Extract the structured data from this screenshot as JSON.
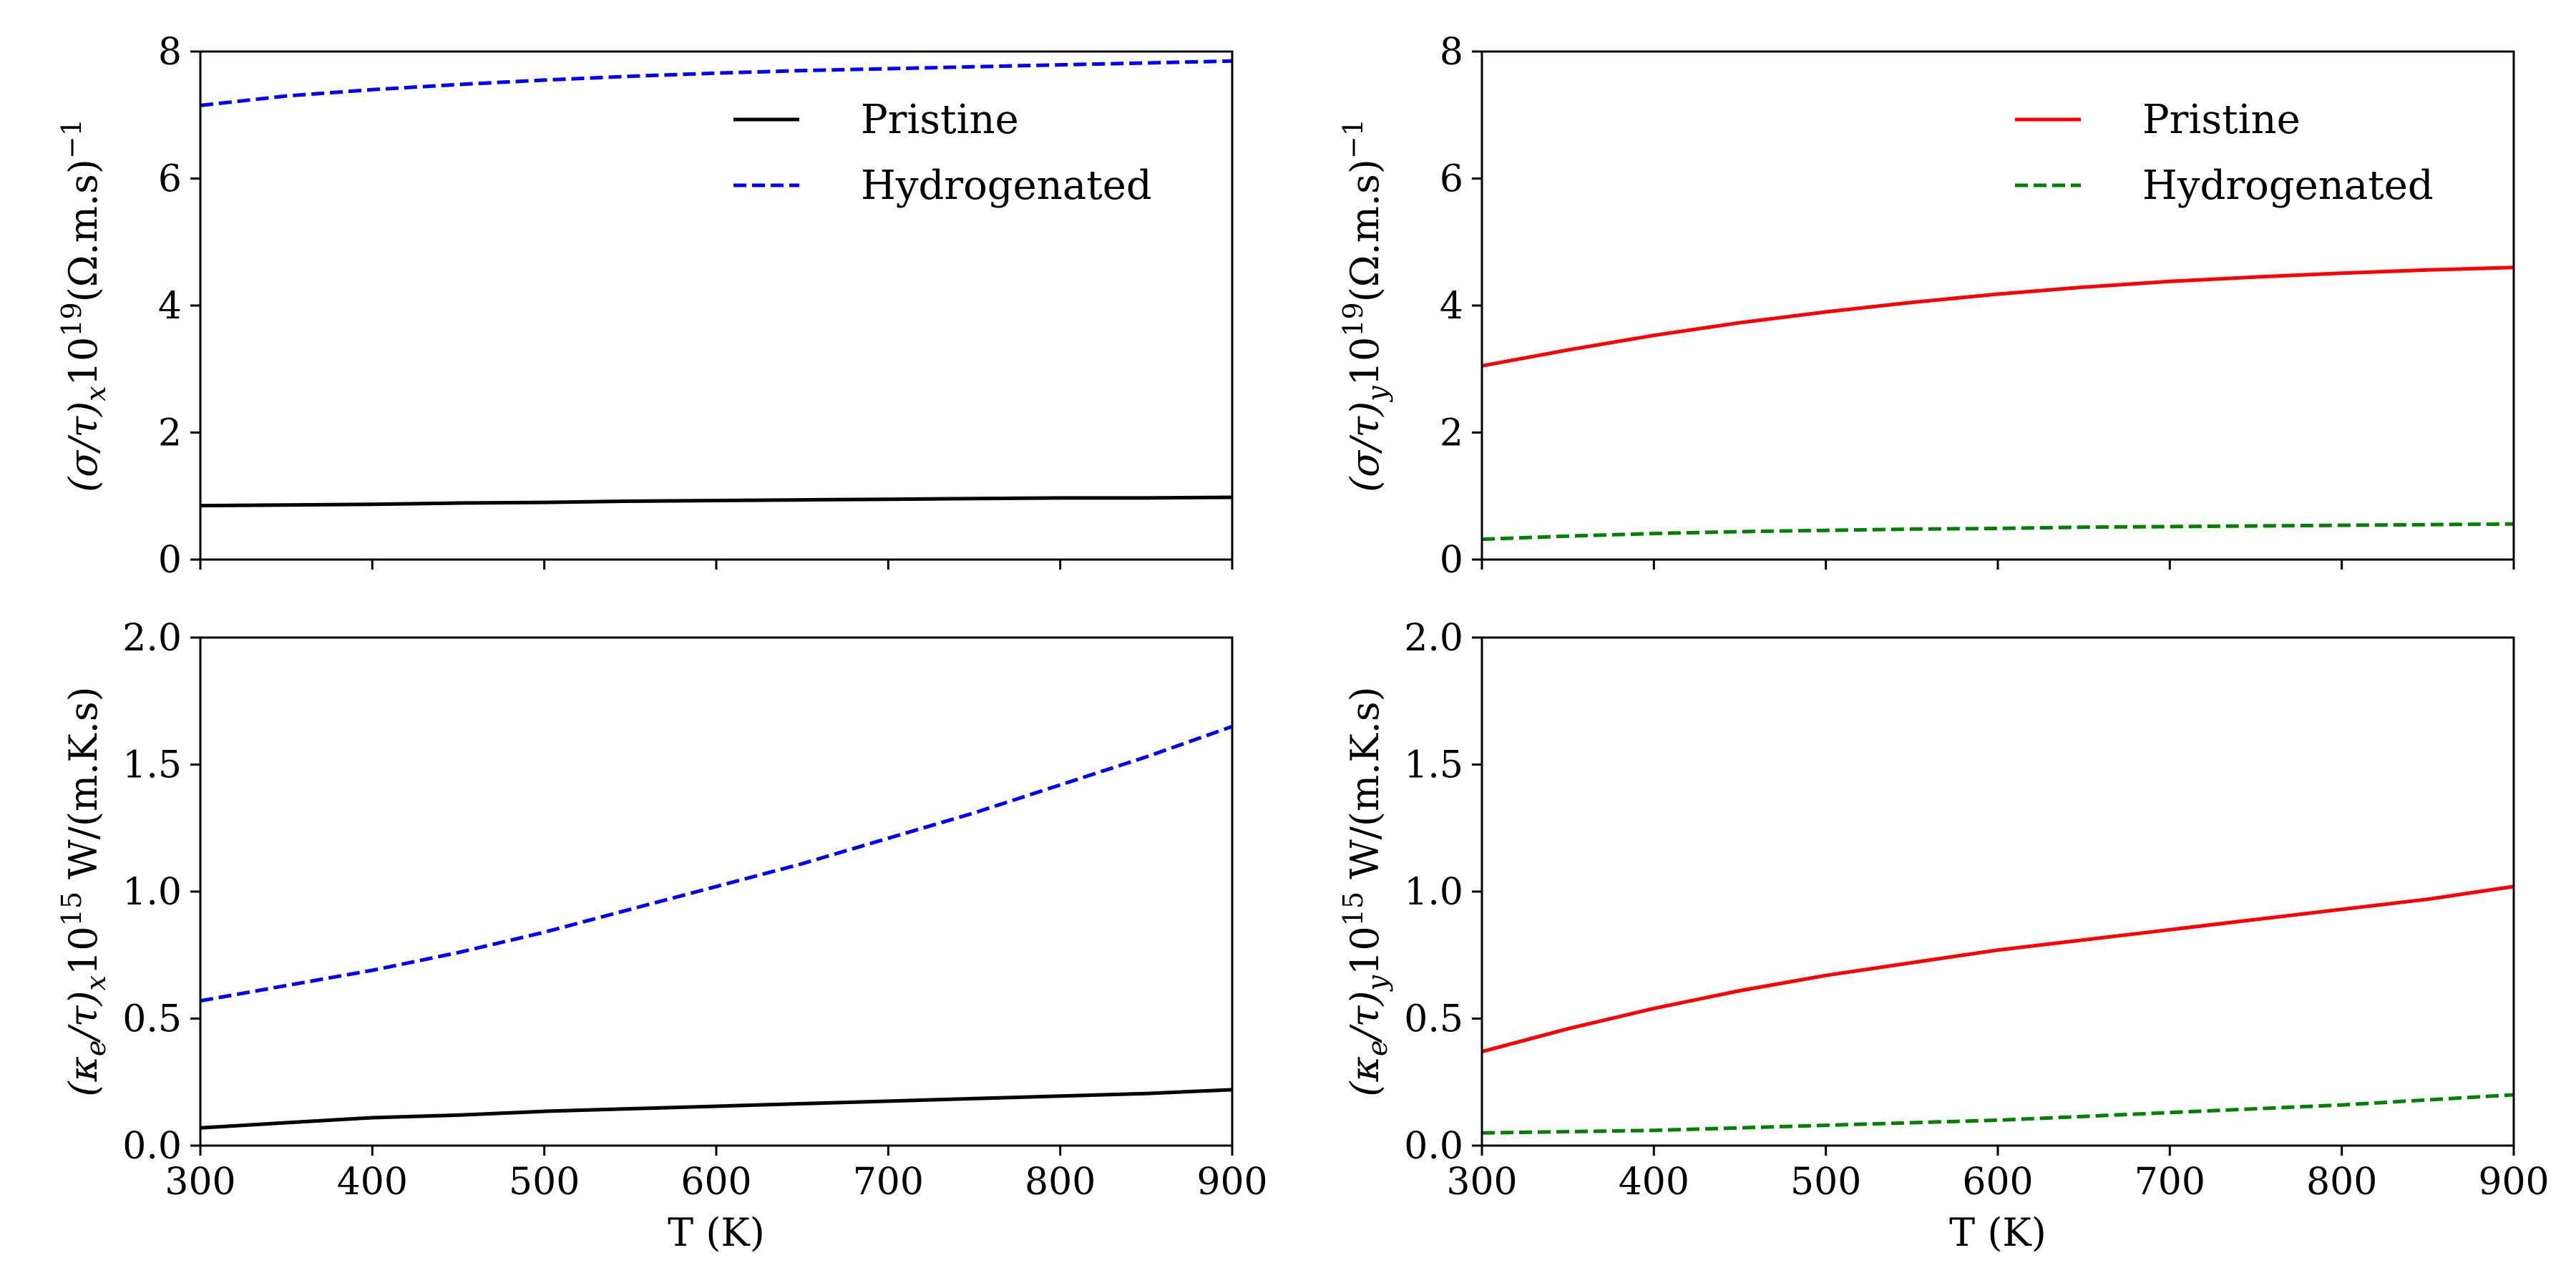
{
  "chart_data": [
    {
      "id": "sigma-x",
      "type": "line",
      "ylabel": "(σ/τ)ₓ10¹⁹(Ω.m.s)⁻¹",
      "ylabel_parts": {
        "pre": "(σ/τ)",
        "sub": "x",
        "mid": "10",
        "sup": "19",
        "post": "(Ω.m.s)",
        "post_sup": "−1"
      },
      "xlabel": "",
      "xlim": [
        300,
        900
      ],
      "ylim": [
        0,
        8
      ],
      "xticks": [
        300,
        400,
        500,
        600,
        700,
        800,
        900
      ],
      "xtick_labels_visible": false,
      "yticks": [
        0,
        2,
        4,
        6,
        8
      ],
      "ytick_labels": [
        "0",
        "2",
        "4",
        "6",
        "8"
      ],
      "legend": {
        "position": "top-right"
      },
      "x": [
        300,
        350,
        400,
        450,
        500,
        550,
        600,
        650,
        700,
        750,
        800,
        850,
        900
      ],
      "series": [
        {
          "name": "Pristine",
          "color": "#000000",
          "dash": "solid",
          "values": [
            0.85,
            0.86,
            0.87,
            0.89,
            0.9,
            0.92,
            0.93,
            0.94,
            0.95,
            0.96,
            0.97,
            0.97,
            0.98
          ]
        },
        {
          "name": "Hydrogenated",
          "color": "#0000ff",
          "dash": "dashed",
          "values": [
            7.15,
            7.3,
            7.4,
            7.48,
            7.55,
            7.61,
            7.66,
            7.7,
            7.73,
            7.76,
            7.79,
            7.82,
            7.85
          ]
        }
      ]
    },
    {
      "id": "sigma-y",
      "type": "line",
      "ylabel": "(σ/τ)ᵧ10¹⁹(Ω.m.s)⁻¹",
      "ylabel_parts": {
        "pre": "(σ/τ)",
        "sub": "y",
        "mid": "10",
        "sup": "19",
        "post": "(Ω.m.s)",
        "post_sup": "−1"
      },
      "xlabel": "",
      "xlim": [
        300,
        900
      ],
      "ylim": [
        0,
        8
      ],
      "xticks": [
        300,
        400,
        500,
        600,
        700,
        800,
        900
      ],
      "xtick_labels_visible": false,
      "yticks": [
        0,
        2,
        4,
        6,
        8
      ],
      "ytick_labels": [
        "0",
        "2",
        "4",
        "6",
        "8"
      ],
      "legend": {
        "position": "top-right"
      },
      "x": [
        300,
        350,
        400,
        450,
        500,
        550,
        600,
        650,
        700,
        750,
        800,
        850,
        900
      ],
      "series": [
        {
          "name": "Pristine",
          "color": "#ff0000",
          "dash": "solid",
          "values": [
            3.05,
            3.3,
            3.53,
            3.73,
            3.9,
            4.05,
            4.18,
            4.29,
            4.38,
            4.45,
            4.51,
            4.56,
            4.6
          ]
        },
        {
          "name": "Hydrogenated",
          "color": "#008000",
          "dash": "dashed",
          "values": [
            0.32,
            0.37,
            0.41,
            0.44,
            0.46,
            0.48,
            0.49,
            0.51,
            0.52,
            0.53,
            0.54,
            0.55,
            0.56
          ]
        }
      ]
    },
    {
      "id": "kappa-x",
      "type": "line",
      "ylabel": "(κₑ/τ)ₓ10¹⁵ W/(m.K.s)",
      "ylabel_parts": {
        "pre": "(κ",
        "presub": "e",
        "pre2": "/τ)",
        "sub": "x",
        "mid": "10",
        "sup": "15",
        "post": " W/(m.K.s)"
      },
      "xlabel": "T (K)",
      "xlim": [
        300,
        900
      ],
      "ylim": [
        0,
        2.0
      ],
      "xticks": [
        300,
        400,
        500,
        600,
        700,
        800,
        900
      ],
      "xtick_labels": [
        "300",
        "400",
        "500",
        "600",
        "700",
        "800",
        "900"
      ],
      "xtick_labels_visible": true,
      "yticks": [
        0,
        0.5,
        1.0,
        1.5,
        2.0
      ],
      "ytick_labels": [
        "0.0",
        "0.5",
        "1.0",
        "1.5",
        "2.0"
      ],
      "x": [
        300,
        350,
        400,
        450,
        500,
        550,
        600,
        650,
        700,
        750,
        800,
        850,
        900
      ],
      "series": [
        {
          "name": "Pristine",
          "color": "#000000",
          "dash": "solid",
          "values": [
            0.07,
            0.09,
            0.11,
            0.12,
            0.135,
            0.145,
            0.155,
            0.165,
            0.175,
            0.185,
            0.195,
            0.205,
            0.22
          ]
        },
        {
          "name": "Hydrogenated",
          "color": "#0000ff",
          "dash": "dashed",
          "values": [
            0.57,
            0.63,
            0.69,
            0.76,
            0.84,
            0.93,
            1.02,
            1.11,
            1.21,
            1.31,
            1.42,
            1.53,
            1.65
          ]
        }
      ]
    },
    {
      "id": "kappa-y",
      "type": "line",
      "ylabel": "(κₑ/τ)ᵧ10¹⁵ W/(m.K.s)",
      "ylabel_parts": {
        "pre": "(κ",
        "presub": "e",
        "pre2": "/τ)",
        "sub": "y",
        "mid": "10",
        "sup": "15",
        "post": " W/(m.K.s)"
      },
      "xlabel": "T (K)",
      "xlim": [
        300,
        900
      ],
      "ylim": [
        0,
        2.0
      ],
      "xticks": [
        300,
        400,
        500,
        600,
        700,
        800,
        900
      ],
      "xtick_labels": [
        "300",
        "400",
        "500",
        "600",
        "700",
        "800",
        "900"
      ],
      "xtick_labels_visible": true,
      "yticks": [
        0,
        0.5,
        1.0,
        1.5,
        2.0
      ],
      "ytick_labels": [
        "0.0",
        "0.5",
        "1.0",
        "1.5",
        "2.0"
      ],
      "x": [
        300,
        350,
        400,
        450,
        500,
        550,
        600,
        650,
        700,
        750,
        800,
        850,
        900
      ],
      "series": [
        {
          "name": "Pristine",
          "color": "#ff0000",
          "dash": "solid",
          "values": [
            0.37,
            0.46,
            0.54,
            0.61,
            0.67,
            0.72,
            0.77,
            0.81,
            0.85,
            0.89,
            0.93,
            0.97,
            1.02
          ]
        },
        {
          "name": "Hydrogenated",
          "color": "#008000",
          "dash": "dashed",
          "values": [
            0.05,
            0.055,
            0.06,
            0.07,
            0.08,
            0.09,
            0.1,
            0.115,
            0.13,
            0.145,
            0.16,
            0.18,
            0.2
          ]
        }
      ]
    }
  ]
}
